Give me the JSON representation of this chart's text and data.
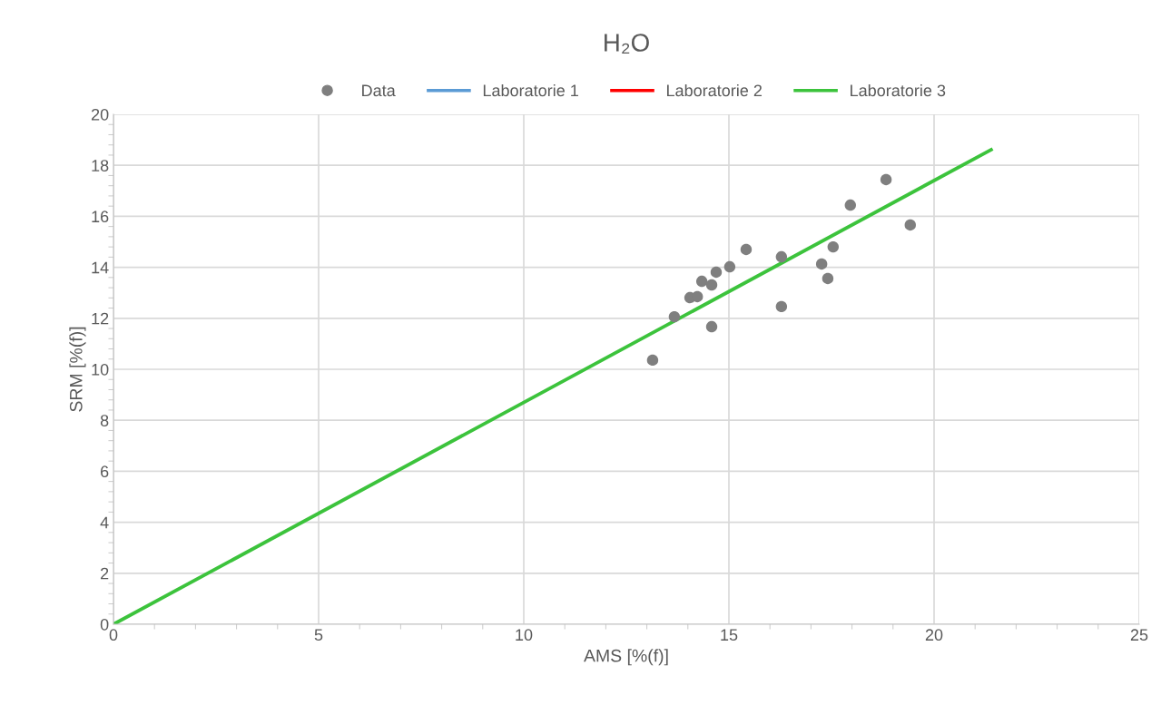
{
  "chart_data": {
    "type": "scatter",
    "title": "H₂O",
    "xlabel": "AMS [%(f)]",
    "ylabel": "SRM [%(f)]",
    "xlim": [
      0,
      25
    ],
    "xticks": [
      0,
      5,
      10,
      15,
      20,
      25
    ],
    "ylim": [
      0,
      20
    ],
    "yticks": [
      0,
      2,
      4,
      6,
      8,
      10,
      12,
      14,
      16,
      18,
      20
    ],
    "grid": true,
    "legend": "top",
    "marker": "circle",
    "series": [
      {
        "name": "Data",
        "color": "#7f7f7f",
        "x": [
          13.14,
          13.67,
          14.05,
          14.23,
          14.34,
          14.58,
          14.69,
          14.58,
          15.02,
          15.42,
          16.28,
          16.28,
          17.26,
          17.41,
          17.54,
          17.96,
          18.83,
          19.42
        ],
        "values": [
          10.36,
          12.06,
          12.81,
          12.85,
          13.45,
          13.31,
          13.81,
          11.67,
          14.02,
          14.7,
          14.41,
          12.46,
          14.13,
          13.56,
          14.8,
          16.44,
          17.44,
          15.66
        ]
      },
      {
        "name": "Laboratorie 1",
        "type": "line",
        "marker": "none",
        "color": "#5b9bd5"
      },
      {
        "name": "Laboratorie 2",
        "type": "line",
        "marker": "none",
        "color": "#ff0000"
      },
      {
        "name": "Laboratorie 3",
        "type": "line",
        "marker": "none",
        "color": "#3cc33c",
        "x": [
          0,
          21.39
        ],
        "values": [
          0,
          18.61
        ]
      }
    ]
  }
}
